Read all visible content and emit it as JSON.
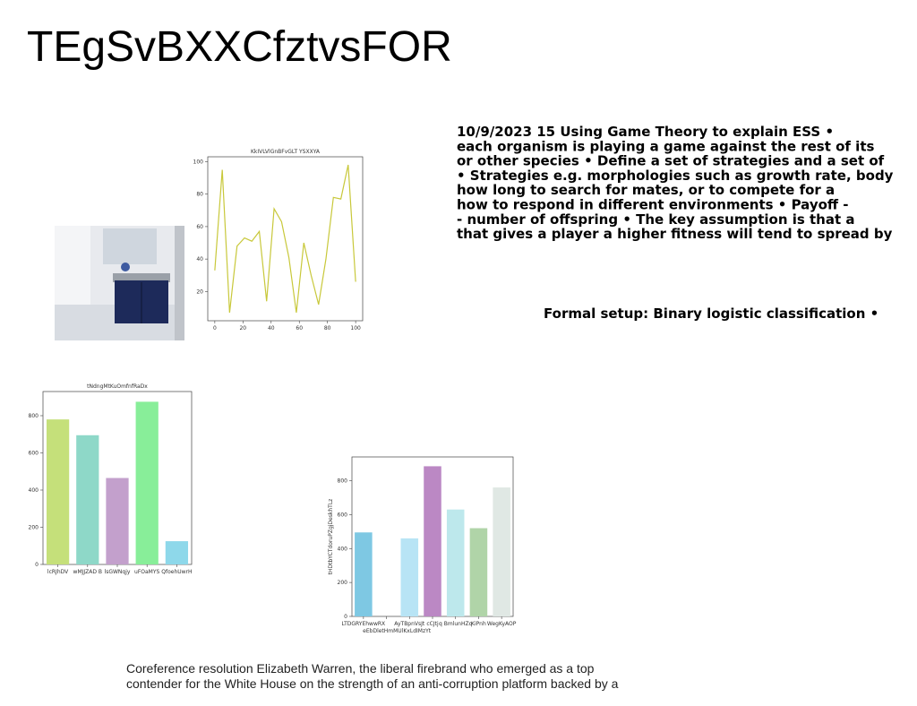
{
  "title": "TEgSvBXXCfztvsFOR",
  "text_lines": [
    "10/9/2023 15 Using Game Theory to explain ESS •",
    "each organism is playing a game against the rest of its",
    "or other species • Define a set of strategies and a set of",
    "• Strategies e.g. morphologies such as growth rate, body",
    "how long to search for mates, or to compete for a",
    "how to respond in different environments • Payoff -",
    "- number of offspring • The key assumption is that a",
    "that gives a player a higher fitness will tend to spread by"
  ],
  "subheading": "Formal setup: Binary logistic classification •",
  "caption_lines": [
    "Coreference resolution Elizabeth Warren, the liberal firebrand who emerged as a top",
    "contender for the White House on the strength of an anti-corruption platform backed by a"
  ],
  "chart_data": [
    {
      "type": "line",
      "title": "KkIVLVlGnBFvGLT YSXXYA",
      "x": [
        0,
        5.3,
        10.5,
        15.8,
        21.1,
        26.3,
        31.6,
        36.8,
        42.1,
        47.4,
        52.6,
        57.9,
        63.2,
        68.4,
        73.7,
        78.9,
        84.2,
        89.5,
        94.7,
        100
      ],
      "series": [
        {
          "name": "series",
          "color": "#c8c83a",
          "values": [
            33,
            95,
            7,
            48,
            53,
            51,
            57,
            14,
            71,
            63,
            41,
            7,
            50,
            30,
            12,
            40,
            78,
            77,
            98,
            26
          ]
        }
      ],
      "xlim": [
        -5,
        105
      ],
      "xticks": [
        0,
        20,
        40,
        60,
        80,
        100
      ],
      "ylim": [
        2,
        103
      ],
      "yticks": [
        20,
        40,
        60,
        80,
        100
      ]
    },
    {
      "type": "bar",
      "title": "tNdngMtKuOmfnfRaDx",
      "categories": [
        "lcRJhDV",
        "wMJJZAD B",
        "lsGWNqjy",
        "uFOaMYS",
        "QfoehUwrH"
      ],
      "values": [
        780,
        695,
        465,
        875,
        125
      ],
      "colors": [
        "#c5e07a",
        "#8ed8c8",
        "#c3a0cc",
        "#88ee99",
        "#8ed8ea"
      ],
      "ylim": [
        0,
        930
      ],
      "yticks": [
        0,
        200,
        400,
        600,
        800
      ]
    },
    {
      "type": "bar",
      "ylabel": "tHDtbYCTdoruPZgjDeskhTLz",
      "categories": [
        "LTDGRYEhwwRX",
        "eEbDletHmMUlKxLdIMzYt",
        "AyTBpnVsJt",
        "cCJtj",
        "q BmlunHZq",
        "KiPnh",
        "WegKyAOP"
      ],
      "values": [
        495,
        0,
        460,
        885,
        630,
        520,
        760
      ],
      "colors": [
        "#7ec8e3",
        "#cccccc",
        "#b8e4f5",
        "#bb88c4",
        "#bde8ec",
        "#b0d4a8",
        "#e0e8e4"
      ],
      "ylim": [
        0,
        940
      ],
      "yticks": [
        0,
        200,
        400,
        600,
        800
      ]
    }
  ]
}
